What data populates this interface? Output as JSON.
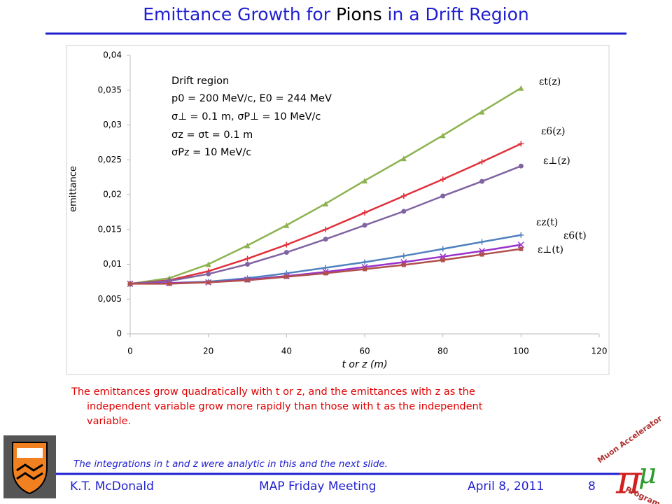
{
  "title_parts": [
    "Emittance Growth for",
    "Pions",
    "in a Drift Region"
  ],
  "chart_data": {
    "type": "line",
    "xlabel": "t or z (m)",
    "ylabel": "emittance",
    "x": [
      0,
      10,
      20,
      30,
      40,
      50,
      60,
      70,
      80,
      90,
      100
    ],
    "xlim": [
      0,
      120
    ],
    "xticks": [
      0,
      20,
      40,
      60,
      80,
      100,
      120
    ],
    "ylim": [
      0,
      0.04
    ],
    "yticks": [
      0,
      {
        "value": 0.005,
        "label": "0,005"
      },
      {
        "value": 0.01,
        "label": "0,01"
      },
      {
        "value": 0.015,
        "label": "0,015"
      },
      {
        "value": 0.02,
        "label": "0,02"
      },
      {
        "value": 0.025,
        "label": "0,025"
      },
      {
        "value": 0.03,
        "label": "0,03"
      },
      {
        "value": 0.035,
        "label": "0,035"
      },
      {
        "value": 0.04,
        "label": "0,04"
      }
    ],
    "grid": false,
    "annotation": [
      "Drift region",
      "p0 = 200 MeV/c, E0 = 244 MeV",
      "σ⊥ = 0.1 m, σP⊥ = 10 MeV/c",
      "σz = σt = 0.1 m",
      "σPz = 10 MeV/c"
    ],
    "series": [
      {
        "name": "εt(z)",
        "color": "#8db350",
        "marker": "triangle",
        "values": [
          0.0072,
          0.008,
          0.01,
          0.0127,
          0.0156,
          0.0187,
          0.022,
          0.0252,
          0.0285,
          0.0319,
          0.0353
        ]
      },
      {
        "name": "ε6(z)",
        "color": "#e0303a",
        "marker": "plus",
        "values": [
          0.0072,
          0.0077,
          0.009,
          0.0108,
          0.0128,
          0.015,
          0.0174,
          0.0198,
          0.0222,
          0.0247,
          0.0273
        ]
      },
      {
        "name": "ε⊥(z)",
        "color": "#8064a2",
        "marker": "circle",
        "values": [
          0.0072,
          0.0076,
          0.0086,
          0.01,
          0.0117,
          0.0136,
          0.0156,
          0.0176,
          0.0198,
          0.0219,
          0.0241
        ]
      },
      {
        "name": "εz(t)",
        "color": "#4f81bd",
        "marker": "plus",
        "values": [
          0.0072,
          0.0073,
          0.0075,
          0.008,
          0.0087,
          0.0095,
          0.0103,
          0.0112,
          0.0122,
          0.0132,
          0.0142
        ]
      },
      {
        "name": "ε6(t)",
        "color": "#9932cc",
        "marker": "x",
        "values": [
          0.0072,
          0.0073,
          0.0074,
          0.0078,
          0.0083,
          0.0089,
          0.0096,
          0.0103,
          0.0111,
          0.0119,
          0.0128
        ]
      },
      {
        "name": "ε⊥(t)",
        "color": "#b0504d",
        "marker": "square",
        "values": [
          0.0072,
          0.0072,
          0.0074,
          0.0077,
          0.0082,
          0.0087,
          0.0093,
          0.0099,
          0.0106,
          0.0114,
          0.0122
        ]
      }
    ]
  },
  "caption": [
    "The emittances grow quadratically with t or z, and the emittances with z as the",
    "independent variable grow more rapidly than those with t as the independent",
    "variable."
  ],
  "footnote": "The integrations in t  and z  were analytic in this and the next slide.",
  "footer": {
    "author": "K.T. McDonald",
    "meeting": "MAP Friday Meeting",
    "date": "April 8, 2011",
    "page": "8"
  },
  "logo_text": [
    "Muon Accelerator",
    "Program"
  ]
}
